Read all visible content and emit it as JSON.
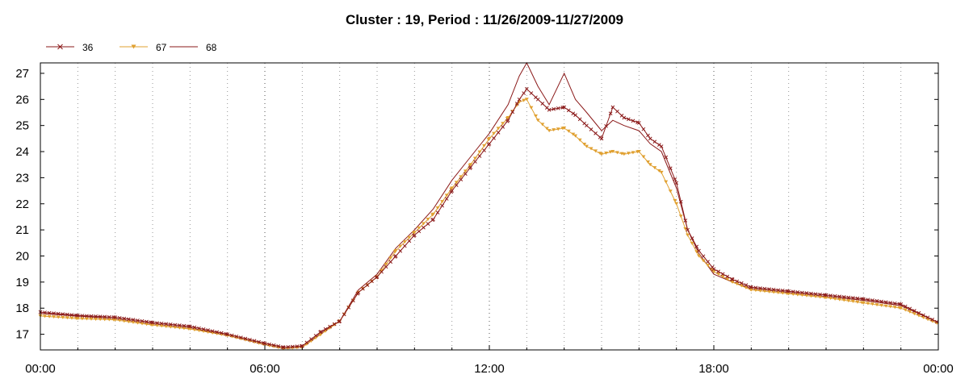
{
  "chart_data": {
    "type": "line",
    "title": "Cluster : 19, Period : 11/26/2009-11/27/2009",
    "xlabel": "",
    "ylabel": "",
    "x_ticks": [
      "00:00",
      "06:00",
      "12:00",
      "18:00",
      "00:00"
    ],
    "y_ticks": [
      17,
      18,
      19,
      20,
      21,
      22,
      23,
      24,
      25,
      26,
      27
    ],
    "xlim_hours": [
      0,
      24
    ],
    "ylim": [
      16.4,
      27.4
    ],
    "grid": "dotted vertical lines",
    "legend_position": "top-left",
    "series": [
      {
        "name": "36",
        "color": "#8b1a1a",
        "marker": "x",
        "points": [
          [
            0,
            17.85
          ],
          [
            1,
            17.72
          ],
          [
            2,
            17.65
          ],
          [
            3,
            17.45
          ],
          [
            4,
            17.3
          ],
          [
            5,
            17.0
          ],
          [
            6,
            16.65
          ],
          [
            6.5,
            16.5
          ],
          [
            7,
            16.55
          ],
          [
            7.5,
            17.1
          ],
          [
            8,
            17.5
          ],
          [
            8.5,
            18.6
          ],
          [
            9,
            19.2
          ],
          [
            9.5,
            20.0
          ],
          [
            10,
            20.8
          ],
          [
            10.5,
            21.4
          ],
          [
            11,
            22.5
          ],
          [
            11.5,
            23.4
          ],
          [
            12,
            24.3
          ],
          [
            12.5,
            25.2
          ],
          [
            12.8,
            26.0
          ],
          [
            13,
            26.4
          ],
          [
            13.3,
            26.0
          ],
          [
            13.6,
            25.6
          ],
          [
            14,
            25.7
          ],
          [
            14.3,
            25.4
          ],
          [
            14.6,
            25.0
          ],
          [
            15,
            24.5
          ],
          [
            15.3,
            25.7
          ],
          [
            15.6,
            25.3
          ],
          [
            16,
            25.1
          ],
          [
            16.3,
            24.5
          ],
          [
            16.6,
            24.2
          ],
          [
            17,
            22.8
          ],
          [
            17.3,
            21.0
          ],
          [
            17.6,
            20.2
          ],
          [
            18,
            19.5
          ],
          [
            18.5,
            19.1
          ],
          [
            19,
            18.8
          ],
          [
            20,
            18.65
          ],
          [
            21,
            18.5
          ],
          [
            22,
            18.35
          ],
          [
            23,
            18.15
          ],
          [
            24,
            17.45
          ]
        ]
      },
      {
        "name": "67",
        "color": "#e0a030",
        "marker": "triangle-down",
        "points": [
          [
            0,
            17.7
          ],
          [
            1,
            17.6
          ],
          [
            2,
            17.55
          ],
          [
            3,
            17.35
          ],
          [
            4,
            17.2
          ],
          [
            5,
            16.95
          ],
          [
            6,
            16.6
          ],
          [
            6.5,
            16.45
          ],
          [
            7,
            16.5
          ],
          [
            7.5,
            17.0
          ],
          [
            8,
            17.5
          ],
          [
            8.5,
            18.6
          ],
          [
            9,
            19.2
          ],
          [
            9.5,
            20.2
          ],
          [
            10,
            20.9
          ],
          [
            10.5,
            21.6
          ],
          [
            11,
            22.6
          ],
          [
            11.5,
            23.5
          ],
          [
            12,
            24.5
          ],
          [
            12.5,
            25.3
          ],
          [
            12.8,
            25.9
          ],
          [
            13,
            26.0
          ],
          [
            13.3,
            25.2
          ],
          [
            13.6,
            24.8
          ],
          [
            14,
            24.9
          ],
          [
            14.3,
            24.6
          ],
          [
            14.6,
            24.2
          ],
          [
            15,
            23.9
          ],
          [
            15.3,
            24.0
          ],
          [
            15.6,
            23.9
          ],
          [
            16,
            24.0
          ],
          [
            16.3,
            23.5
          ],
          [
            16.6,
            23.2
          ],
          [
            17,
            22.0
          ],
          [
            17.3,
            20.8
          ],
          [
            17.6,
            20.0
          ],
          [
            18,
            19.4
          ],
          [
            18.5,
            19.0
          ],
          [
            19,
            18.7
          ],
          [
            20,
            18.55
          ],
          [
            21,
            18.4
          ],
          [
            22,
            18.2
          ],
          [
            23,
            18.0
          ],
          [
            24,
            17.4
          ]
        ]
      },
      {
        "name": "68",
        "color": "#8b1a1a",
        "marker": "none",
        "points": [
          [
            0,
            17.8
          ],
          [
            1,
            17.7
          ],
          [
            2,
            17.6
          ],
          [
            3,
            17.4
          ],
          [
            4,
            17.25
          ],
          [
            5,
            16.95
          ],
          [
            6,
            16.6
          ],
          [
            6.5,
            16.45
          ],
          [
            7,
            16.5
          ],
          [
            7.5,
            17.05
          ],
          [
            8,
            17.5
          ],
          [
            8.5,
            18.7
          ],
          [
            9,
            19.3
          ],
          [
            9.5,
            20.3
          ],
          [
            10,
            21.0
          ],
          [
            10.5,
            21.8
          ],
          [
            11,
            22.9
          ],
          [
            11.5,
            23.8
          ],
          [
            12,
            24.7
          ],
          [
            12.5,
            25.8
          ],
          [
            12.8,
            26.9
          ],
          [
            13,
            27.4
          ],
          [
            13.3,
            26.5
          ],
          [
            13.6,
            25.8
          ],
          [
            14,
            27.0
          ],
          [
            14.3,
            26.0
          ],
          [
            14.6,
            25.5
          ],
          [
            15,
            24.8
          ],
          [
            15.3,
            25.2
          ],
          [
            15.6,
            25.0
          ],
          [
            16,
            24.8
          ],
          [
            16.3,
            24.3
          ],
          [
            16.6,
            24.0
          ],
          [
            17,
            22.6
          ],
          [
            17.3,
            21.0
          ],
          [
            17.6,
            20.1
          ],
          [
            18,
            19.3
          ],
          [
            18.5,
            19.0
          ],
          [
            19,
            18.75
          ],
          [
            20,
            18.6
          ],
          [
            21,
            18.45
          ],
          [
            22,
            18.3
          ],
          [
            23,
            18.1
          ],
          [
            24,
            17.45
          ]
        ]
      }
    ]
  }
}
